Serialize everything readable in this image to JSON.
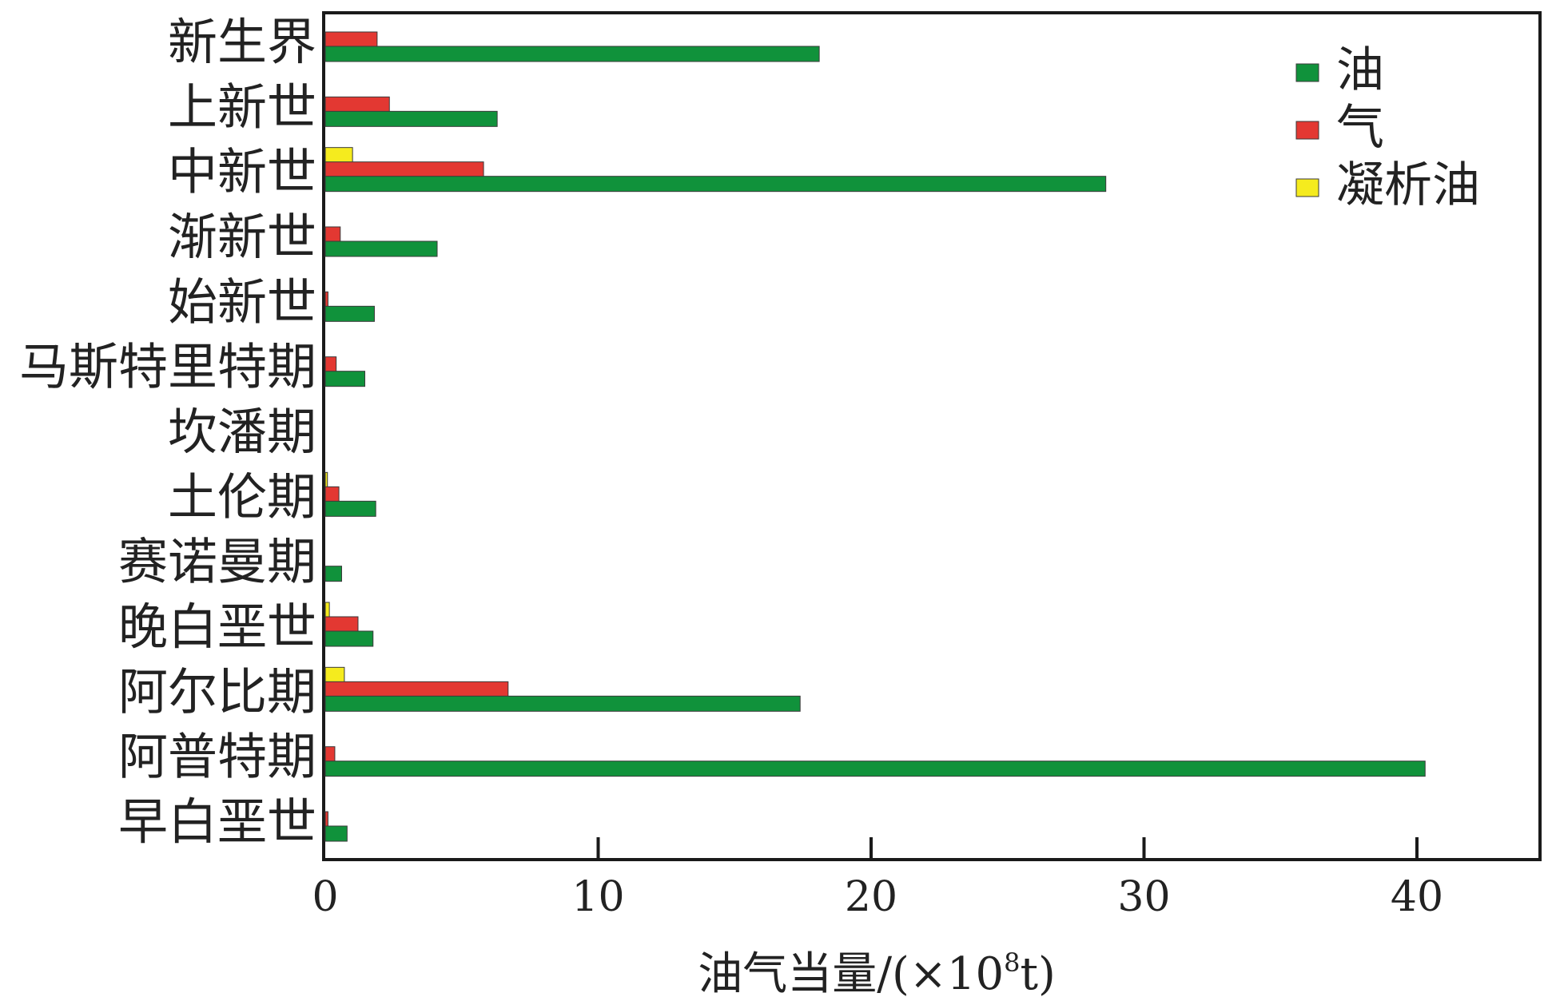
{
  "chart_data": {
    "type": "bar",
    "orientation": "horizontal",
    "title": "",
    "xlabel_main": "油气当量/(×10",
    "xlabel_sup": "8",
    "xlabel_tail": "t)",
    "ylabel": "",
    "xlim": [
      0,
      45
    ],
    "xticks": [
      0,
      10,
      20,
      30,
      40
    ],
    "grid": false,
    "legend_position": "top-right",
    "categories": [
      "新生界",
      "上新世",
      "中新世",
      "渐新世",
      "始新世",
      "马斯特里特期",
      "坎潘期",
      "土伦期",
      "赛诺曼期",
      "晚白垩世",
      "阿尔比期",
      "阿普特期",
      "早白垩世"
    ],
    "series": [
      {
        "name": "凝析油",
        "color": "#f5eb1e",
        "values": [
          0,
          0,
          1.0,
          0,
          0,
          0,
          0,
          0.08,
          0,
          0.15,
          0.7,
          0,
          0
        ]
      },
      {
        "name": "气",
        "color": "#e33832",
        "values": [
          1.9,
          2.35,
          5.8,
          0.55,
          0.1,
          0.4,
          0,
          0.5,
          0,
          1.2,
          6.7,
          0.35,
          0.1
        ]
      },
      {
        "name": "油",
        "color": "#10923b",
        "values": [
          18.1,
          6.3,
          28.6,
          4.1,
          1.8,
          1.45,
          0,
          1.85,
          0.6,
          1.75,
          17.4,
          40.3,
          0.8
        ]
      }
    ],
    "legend": [
      {
        "name": "油",
        "color": "#10923b"
      },
      {
        "name": "气",
        "color": "#e33832"
      },
      {
        "name": "凝析油",
        "color": "#f5eb1e"
      }
    ]
  }
}
